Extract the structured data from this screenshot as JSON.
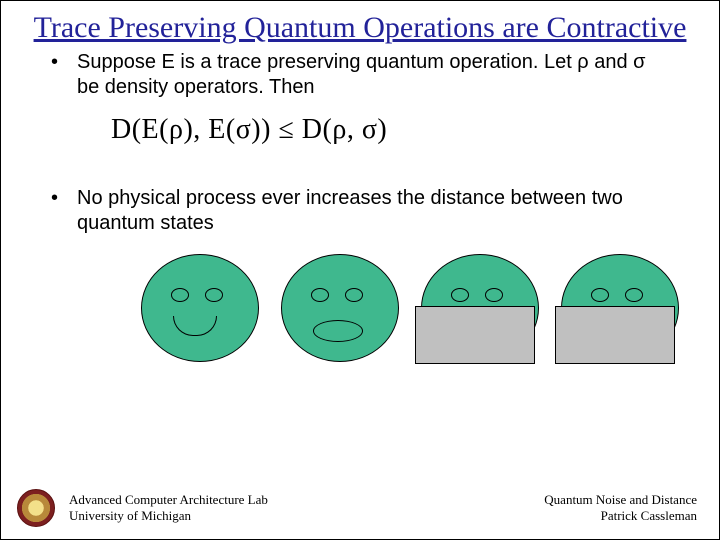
{
  "title": "Trace Preserving Quantum Operations are Contractive",
  "title_color": "#222299",
  "bullets": [
    "Suppose E is a trace preserving quantum operation.  Let ρ and σ be density operators.  Then",
    "No physical process ever increases the distance between two quantum states"
  ],
  "equation": {
    "text": "D(E(ρ), E(σ)) ≤ D(ρ, σ)",
    "fontsize": 28
  },
  "faces": {
    "fill_color": "#3fb88e",
    "cover_color": "#c0c0c0",
    "items": [
      {
        "type": "smile",
        "covered": false
      },
      {
        "type": "oval",
        "covered": false
      },
      {
        "type": "none",
        "covered": true
      },
      {
        "type": "none",
        "covered": true
      }
    ]
  },
  "footer": {
    "left_line1": "Advanced Computer Architecture Lab",
    "left_line2": "University of Michigan",
    "right_line1": "Quantum Noise and Distance",
    "right_line2": "Patrick Cassleman"
  },
  "background_color": "#ffffff"
}
